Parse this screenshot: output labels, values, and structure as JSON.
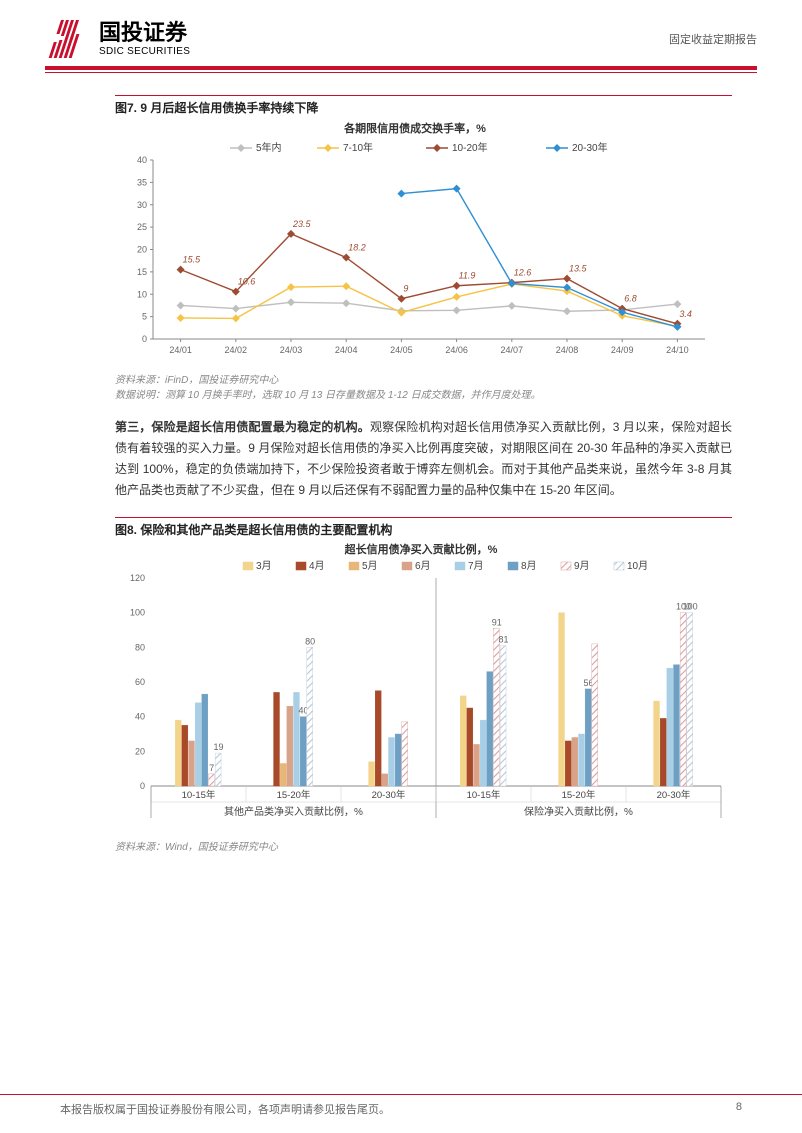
{
  "header": {
    "logo_cn": "国投证券",
    "logo_en": "SDIC SECURITIES",
    "report_type": "固定收益定期报告",
    "logo_stripe_color": "#c8102e"
  },
  "figure7": {
    "caption": "图7. 9 月后超长信用债换手率持续下降",
    "chart_title": "各期限信用债成交换手率，%",
    "type": "line",
    "xlabels": [
      "24/01",
      "24/02",
      "24/03",
      "24/04",
      "24/05",
      "24/06",
      "24/07",
      "24/08",
      "24/09",
      "24/10"
    ],
    "ylim": [
      0,
      40
    ],
    "ytick_step": 5,
    "series": [
      {
        "name": "5年内",
        "color": "#bfbfbf",
        "marker": "diamond",
        "values": [
          7.5,
          6.8,
          8.2,
          8.0,
          6.3,
          6.4,
          7.4,
          6.2,
          6.5,
          7.8
        ]
      },
      {
        "name": "7-10年",
        "color": "#f6c344",
        "marker": "diamond",
        "values": [
          4.7,
          4.6,
          11.6,
          11.8,
          5.9,
          9.4,
          12.3,
          10.7,
          5.2,
          2.8
        ]
      },
      {
        "name": "10-20年",
        "color": "#9e4b33",
        "marker": "diamond",
        "values": [
          15.5,
          10.6,
          23.5,
          18.2,
          9.0,
          11.9,
          12.6,
          13.5,
          6.8,
          3.4
        ],
        "labels": [
          15.5,
          10.6,
          23.5,
          18.2,
          9.0,
          11.9,
          12.6,
          13.5,
          6.8,
          3.4
        ]
      },
      {
        "name": "20-30年",
        "color": "#2f8fd3",
        "marker": "diamond",
        "values": [
          null,
          null,
          null,
          null,
          32.5,
          33.6,
          12.4,
          11.5,
          6.0,
          2.7
        ]
      }
    ],
    "line_width": 1.4,
    "marker_size": 4,
    "background_color": "#ffffff",
    "source": "资料来源：iFinD，国投证券研究中心",
    "data_note": "数据说明：测算 10 月换手率时，选取 10 月 13 日存量数据及 1-12 日成交数据，并作月度处理。"
  },
  "paragraph": {
    "bold_lead": "第三，保险是超长信用债配置最为稳定的机构。",
    "rest": "观察保险机构对超长信用债净买入贡献比例，3 月以来，保险对超长债有着较强的买入力量。9 月保险对超长信用债的净买入比例再度突破，对期限区间在 20-30 年品种的净买入贡献已达到 100%，稳定的负债端加持下，不少保险投资者敢于博弈左侧机会。而对于其他产品类来说，虽然今年 3-8 月其他产品类也贡献了不少买盘，但在 9 月以后还保有不弱配置力量的品种仅集中在 15-20 年区间。"
  },
  "figure8": {
    "caption": "图8. 保险和其他产品类是超长信用债的主要配置机构",
    "chart_title": "超长信用债净买入贡献比例，%",
    "type": "bar",
    "groups": [
      "其他产品类净买入贡献比例，%",
      "保险净买入贡献比例，%"
    ],
    "x_per_group": [
      "10-15年",
      "15-20年",
      "20-30年"
    ],
    "months": [
      "3月",
      "4月",
      "5月",
      "6月",
      "7月",
      "8月",
      "9月",
      "10月"
    ],
    "month_colors": [
      "#f3d48b",
      "#a84a2a",
      "#e8b778",
      "#d9a38a",
      "#a9cfe6",
      "#6ea0c4",
      "#d99fa0",
      "#b9c7d6"
    ],
    "month_patterns": [
      null,
      null,
      null,
      null,
      null,
      null,
      "diag",
      "diag"
    ],
    "ylim": [
      0,
      120
    ],
    "ytick_step": 20,
    "bar_width": 0.07,
    "data": {
      "其他产品类净买入贡献比例，%": {
        "10-15年": [
          38,
          35,
          null,
          26,
          48,
          53,
          7,
          19
        ],
        "15-20年": [
          null,
          54,
          13,
          46,
          54,
          40,
          null,
          80
        ],
        "20-30年": [
          14,
          55,
          null,
          7,
          28,
          30,
          37,
          null
        ]
      },
      "保险净买入贡献比例，%": {
        "10-15年": [
          52,
          45,
          null,
          24,
          38,
          66,
          91,
          81
        ],
        "15-20年": [
          100,
          26,
          null,
          28,
          30,
          56,
          82,
          null
        ],
        "20-30年": [
          49,
          39,
          null,
          null,
          68,
          70,
          100,
          100
        ]
      }
    },
    "data_labels": {
      "其他产品类净买入贡献比例，%": {
        "10-15年": {
          "9月": "7",
          "10月": "19"
        },
        "15-20年": {
          "8月": "40",
          "10月": "80"
        }
      },
      "保险净买入贡献比例，%": {
        "10-15年": {
          "9月": "91",
          "10月": "81"
        },
        "15-20年": {
          "8月": "56"
        },
        "20-30年": {
          "9月": "100",
          "10月": "100"
        }
      }
    },
    "background_color": "#ffffff",
    "source": "资料来源：Wind，国投证券研究中心"
  },
  "footer": {
    "disclaimer": "本报告版权属于国投证券股份有限公司，各项声明请参见报告尾页。",
    "page_num": "8"
  }
}
